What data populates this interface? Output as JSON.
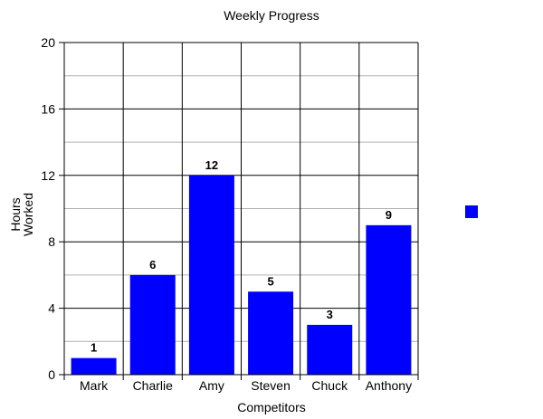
{
  "chart_data": {
    "type": "bar",
    "title": "Weekly Progress",
    "xlabel": "Competitors",
    "ylabel_lines": [
      "Hours",
      "Worked"
    ],
    "categories": [
      "Mark",
      "Charlie",
      "Amy",
      "Steven",
      "Chuck",
      "Anthony"
    ],
    "series": [
      {
        "values": [
          1,
          6,
          12,
          5,
          3,
          9
        ]
      }
    ],
    "data_labels": [
      "1",
      "6",
      "12",
      "5",
      "3",
      "9"
    ],
    "ylim": [
      0,
      20
    ],
    "yticks": [
      0,
      4,
      8,
      12,
      16,
      20
    ],
    "y_minor_gridlines": [
      2,
      6,
      10,
      14,
      18
    ],
    "grid": true,
    "legend": "right",
    "colors": {
      "bar": "#0000ff",
      "major_grid": "#000000",
      "minor_grid": "#b0b0b0",
      "text": "#000000"
    }
  }
}
